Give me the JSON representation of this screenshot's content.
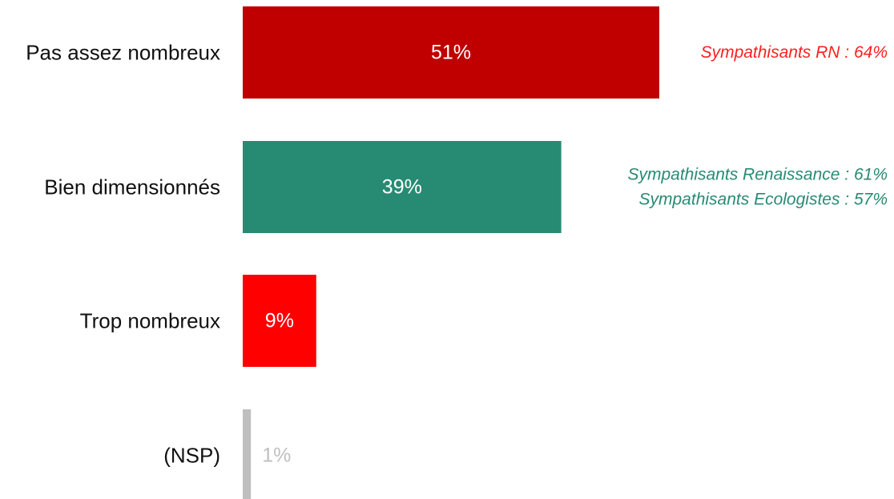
{
  "chart_data": {
    "type": "bar",
    "orientation": "horizontal",
    "categories": [
      "Pas assez nombreux",
      "Bien dimensionnés",
      "Trop nombreux",
      "(NSP)"
    ],
    "values": [
      51,
      39,
      9,
      1
    ],
    "value_labels": [
      "51%",
      "39%",
      "9%",
      "1%"
    ],
    "bar_colors": [
      "#c00000",
      "#278b74",
      "#ff0000",
      "#bfbfbf"
    ],
    "value_label_colors": [
      "#ffffff",
      "#ffffff",
      "#ffffff",
      "#bfbfbf"
    ],
    "xlim": [
      0,
      51
    ],
    "annotations": [
      {
        "category_index": 0,
        "color": "#ff2020",
        "lines": [
          "Sympathisants RN : 64%"
        ]
      },
      {
        "category_index": 1,
        "color": "#278b74",
        "lines": [
          "Sympathisants Renaissance : 61%",
          "Sympathisants Ecologistes : 57%"
        ]
      }
    ],
    "legend": "none",
    "grid": false
  }
}
